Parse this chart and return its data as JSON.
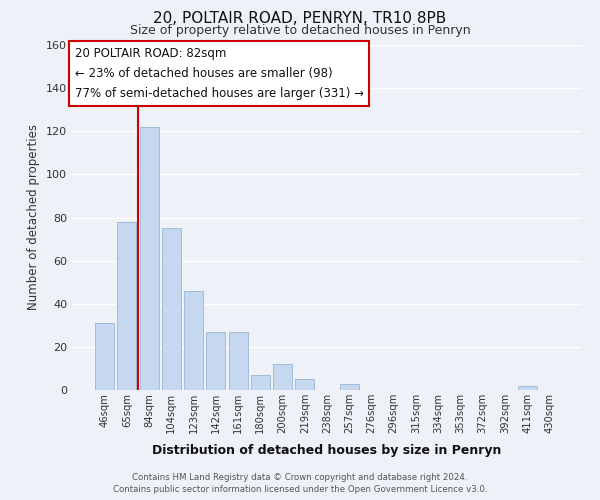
{
  "title": "20, POLTAIR ROAD, PENRYN, TR10 8PB",
  "subtitle": "Size of property relative to detached houses in Penryn",
  "xlabel": "Distribution of detached houses by size in Penryn",
  "ylabel": "Number of detached properties",
  "bar_labels": [
    "46sqm",
    "65sqm",
    "84sqm",
    "104sqm",
    "123sqm",
    "142sqm",
    "161sqm",
    "180sqm",
    "200sqm",
    "219sqm",
    "238sqm",
    "257sqm",
    "276sqm",
    "296sqm",
    "315sqm",
    "334sqm",
    "353sqm",
    "372sqm",
    "392sqm",
    "411sqm",
    "430sqm"
  ],
  "bar_values": [
    31,
    78,
    122,
    75,
    46,
    27,
    27,
    7,
    12,
    5,
    0,
    3,
    0,
    0,
    0,
    0,
    0,
    0,
    0,
    2,
    0
  ],
  "bar_color": "#c5d8f0",
  "bar_edge_color": "#a0bcd8",
  "vline_index": 2,
  "vline_color": "#cc0000",
  "ylim": [
    0,
    160
  ],
  "yticks": [
    0,
    20,
    40,
    60,
    80,
    100,
    120,
    140,
    160
  ],
  "annotation_title": "20 POLTAIR ROAD: 82sqm",
  "annotation_line1": "← 23% of detached houses are smaller (98)",
  "annotation_line2": "77% of semi-detached houses are larger (331) →",
  "annotation_box_color": "#ffffff",
  "annotation_box_edge": "#cc0000",
  "footer_line1": "Contains HM Land Registry data © Crown copyright and database right 2024.",
  "footer_line2": "Contains public sector information licensed under the Open Government Licence v3.0.",
  "bg_color": "#eef2f8",
  "plot_bg_color": "#eef2f8",
  "grid_color": "#ffffff",
  "title_fontsize": 11,
  "subtitle_fontsize": 9
}
